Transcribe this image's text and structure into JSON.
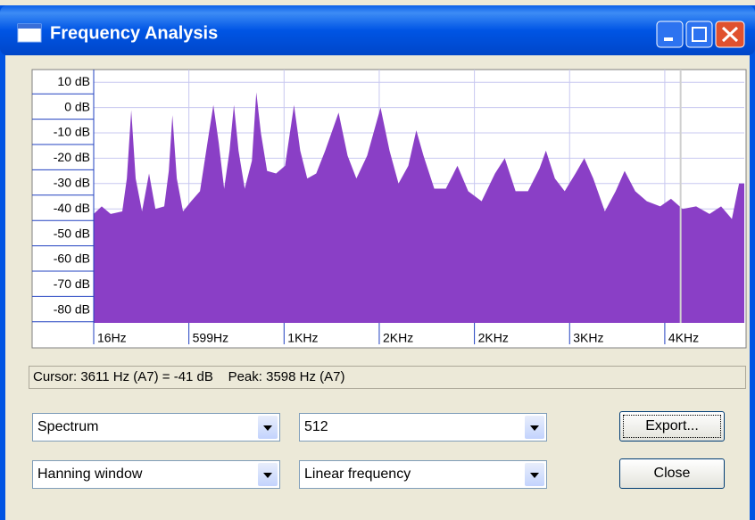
{
  "window": {
    "title": "Frequency Analysis"
  },
  "chart_data": {
    "type": "area",
    "color": "#8a3fc6",
    "grid": true,
    "xlim": [
      16,
      4001
    ],
    "ylim": [
      -85,
      15
    ],
    "xticks": [
      {
        "value": 16,
        "label": "16Hz"
      },
      {
        "value": 599,
        "label": "599Hz"
      },
      {
        "value": 1182,
        "label": "1KHz"
      },
      {
        "value": 1765,
        "label": "2KHz"
      },
      {
        "value": 2348,
        "label": "2KHz"
      },
      {
        "value": 2931,
        "label": "3KHz"
      },
      {
        "value": 3514,
        "label": "4KHz"
      }
    ],
    "yticks": [
      {
        "value": 10,
        "label": "10 dB"
      },
      {
        "value": 0,
        "label": "0 dB"
      },
      {
        "value": -10,
        "label": "-10 dB"
      },
      {
        "value": -20,
        "label": "-20 dB"
      },
      {
        "value": -30,
        "label": "-30 dB"
      },
      {
        "value": -40,
        "label": "-40 dB"
      },
      {
        "value": -50,
        "label": "-50 dB"
      },
      {
        "value": -60,
        "label": "-60 dB"
      },
      {
        "value": -70,
        "label": "-70 dB"
      },
      {
        "value": -80,
        "label": "-80 dB"
      }
    ],
    "cursor": 3611,
    "x": [
      16,
      65,
      120,
      191,
      219,
      246,
      273,
      312,
      355,
      394,
      448,
      476,
      498,
      525,
      563,
      613,
      667,
      722,
      749,
      782,
      815,
      848,
      875,
      903,
      941,
      985,
      1012,
      1040,
      1078,
      1133,
      1188,
      1243,
      1281,
      1324,
      1379,
      1434,
      1516,
      1571,
      1625,
      1691,
      1773,
      1828,
      1883,
      1943,
      1992,
      2036,
      2102,
      2173,
      2244,
      2310,
      2392,
      2474,
      2534,
      2600,
      2676,
      2747,
      2786,
      2841,
      2901,
      2967,
      3021,
      3076,
      3147,
      3213,
      3268,
      3333,
      3404,
      3486,
      3552,
      3623,
      3706,
      3788,
      3859,
      3925,
      3969,
      4001
    ],
    "values": [
      -42,
      -39,
      -42,
      -41,
      -28,
      -1,
      -28,
      -41,
      -26,
      -40,
      -39,
      -25,
      -3,
      -28,
      -41,
      -37,
      -33,
      -10,
      1,
      -14,
      -32,
      -17,
      1,
      -17,
      -32,
      -21,
      6,
      -10,
      -25,
      -26,
      -23,
      1,
      -17,
      -28,
      -26,
      -17,
      -2,
      -19,
      -28,
      -19,
      0,
      -17,
      -30,
      -23,
      -9,
      -19,
      -32,
      -32,
      -23,
      -33,
      -37,
      -26,
      -20,
      -33,
      -33,
      -24,
      -17,
      -28,
      -33,
      -26,
      -20,
      -28,
      -41,
      -33,
      -25,
      -33,
      -37,
      -39,
      -36,
      -40,
      -39,
      -42,
      -39,
      -44,
      -30,
      -30
    ]
  },
  "status": {
    "cursor": "Cursor: 3611 Hz (A7) = -41 dB",
    "peak": "Peak: 3598 Hz (A7)"
  },
  "controls": {
    "algorithm": "Spectrum",
    "size": "512",
    "function": "Hanning window",
    "axis": "Linear frequency",
    "export": "Export...",
    "close": "Close"
  }
}
